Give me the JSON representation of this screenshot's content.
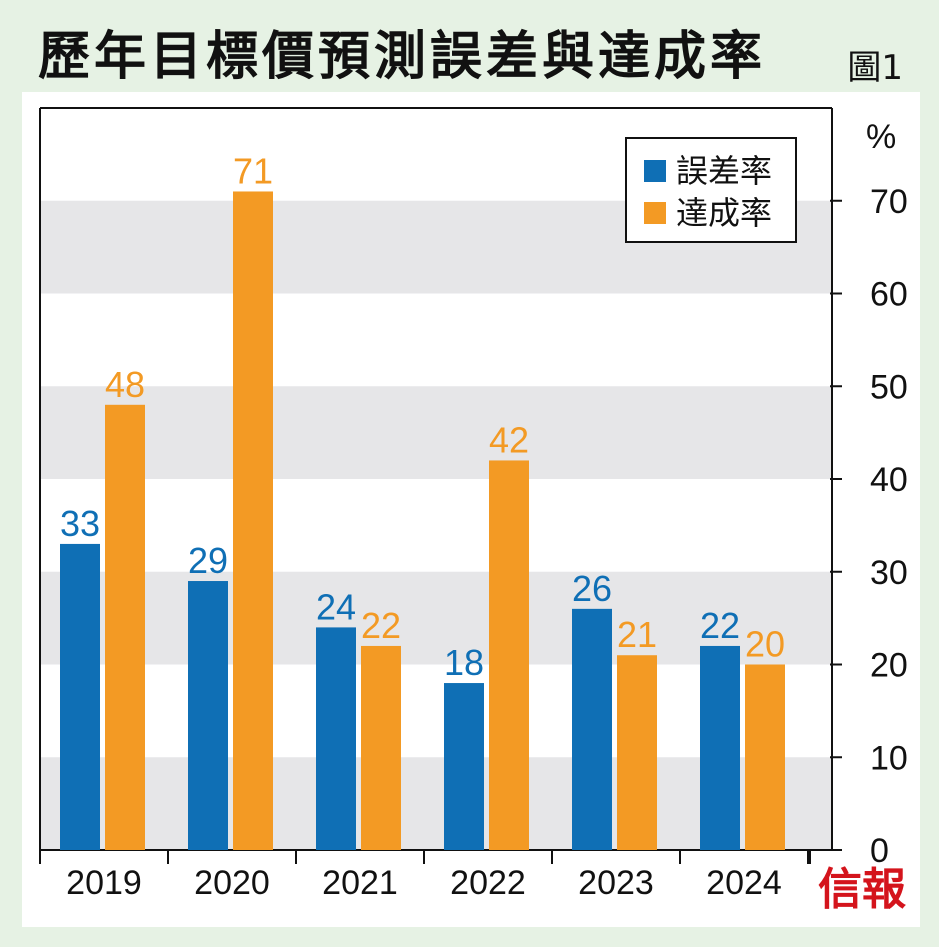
{
  "title": "歷年目標價預測誤差與達成率",
  "figure_label": "圖1",
  "brand": "信報",
  "colors": {
    "series_0": "#0f6fb5",
    "series_1": "#f39a24",
    "band": "#e6e6e8",
    "brand": "#d4141c"
  },
  "chart_data": {
    "type": "bar",
    "title": "歷年目標價預測誤差與達成率",
    "categories": [
      "2019",
      "2020",
      "2021",
      "2022",
      "2023",
      "2024"
    ],
    "series": [
      {
        "name": "誤差率",
        "values": [
          33,
          29,
          24,
          18,
          26,
          22
        ]
      },
      {
        "name": "達成率",
        "values": [
          48,
          71,
          22,
          42,
          21,
          20
        ]
      }
    ],
    "ylabel": "%",
    "ylim": [
      0,
      70
    ],
    "yticks": [
      0,
      10,
      20,
      30,
      40,
      50,
      60,
      70
    ],
    "y_axis_side": "right",
    "legend_position": "top-right",
    "grid": "alternating horizontal bands"
  }
}
